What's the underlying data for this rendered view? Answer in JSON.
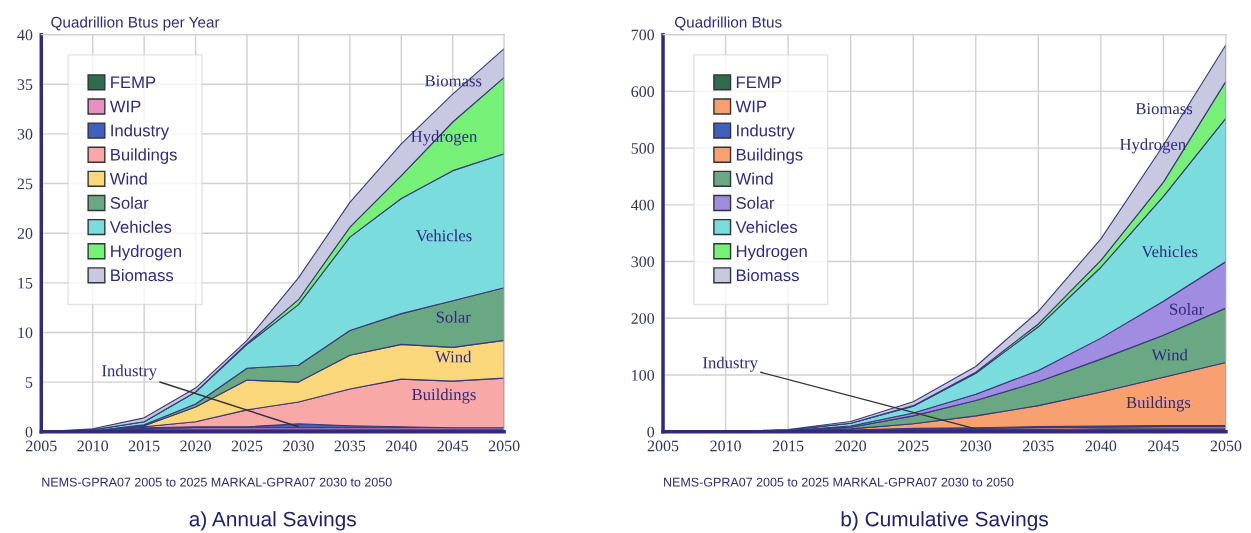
{
  "chart_data": [
    {
      "type": "area",
      "stacked": true,
      "title": "a) Annual Savings",
      "ylabel": "Quadrillion Btus per Year",
      "x": [
        2005,
        2010,
        2015,
        2020,
        2025,
        2030,
        2035,
        2040,
        2045,
        2050
      ],
      "xlim": [
        2005,
        2050
      ],
      "xticks": [
        2005,
        2010,
        2015,
        2020,
        2025,
        2030,
        2035,
        2040,
        2045,
        2050
      ],
      "ylim": [
        0,
        40
      ],
      "yticks": [
        0,
        5,
        10,
        15,
        20,
        25,
        30,
        35,
        40
      ],
      "grid": true,
      "legend": "top left",
      "series": [
        {
          "name": "FEMP",
          "color": "#2e6b4f",
          "values": [
            0,
            0.1,
            0.2,
            0.2,
            0.2,
            0.2,
            0.2,
            0.2,
            0.2,
            0.2
          ]
        },
        {
          "name": "WIP",
          "color": "#e890c0",
          "values": [
            0,
            0,
            0.1,
            0.2,
            0.2,
            0.2,
            0.2,
            0.2,
            0.2,
            0.2
          ]
        },
        {
          "name": "Industry",
          "color": "#4060c0",
          "values": [
            0,
            0,
            0.1,
            0.1,
            0.1,
            0.4,
            0.2,
            0.1,
            0,
            0
          ]
        },
        {
          "name": "Buildings",
          "color": "#f9a8a8",
          "values": [
            0,
            0,
            0.1,
            0.5,
            1.7,
            2.2,
            3.7,
            4.8,
            4.7,
            5.0
          ]
        },
        {
          "name": "Wind",
          "color": "#fad77a",
          "values": [
            0,
            0,
            0.1,
            1.5,
            3.0,
            2.0,
            3.4,
            3.5,
            3.4,
            3.8
          ]
        },
        {
          "name": "Solar",
          "color": "#6aa884",
          "values": [
            0,
            0,
            0.1,
            0.3,
            1.2,
            1.7,
            2.5,
            3.1,
            4.7,
            5.3
          ]
        },
        {
          "name": "Vehicles",
          "color": "#7adcdc",
          "values": [
            0,
            0.1,
            0.3,
            1.2,
            2.4,
            6.1,
            9.4,
            11.6,
            13.1,
            13.5
          ]
        },
        {
          "name": "Hydrogen",
          "color": "#77f077",
          "values": [
            0,
            0,
            0,
            0,
            0.1,
            0.5,
            1.0,
            2.3,
            4.9,
            7.7
          ]
        },
        {
          "name": "Biomass",
          "color": "#c8c8e0",
          "values": [
            0,
            0.1,
            0.4,
            0.4,
            0.3,
            2.2,
            2.5,
            3.2,
            2.8,
            2.9
          ]
        }
      ],
      "annotations": [
        "Biomass",
        "Hydrogen",
        "Vehicles",
        "Solar",
        "Wind",
        "Buildings",
        {
          "text": "Industry",
          "x": 2030,
          "y": 0.5
        },
        "NEMS-GPRA07 2005 to 2025 MARKAL-GPRA07 2030 to 2050"
      ]
    },
    {
      "type": "area",
      "stacked": true,
      "title": "b) Cumulative Savings",
      "ylabel": "Quadrillion Btus",
      "x": [
        2005,
        2010,
        2015,
        2020,
        2025,
        2030,
        2035,
        2040,
        2045,
        2050
      ],
      "xlim": [
        2005,
        2050
      ],
      "xticks": [
        2005,
        2010,
        2015,
        2020,
        2025,
        2030,
        2035,
        2040,
        2045,
        2050
      ],
      "ylim": [
        0,
        700
      ],
      "yticks": [
        0,
        100,
        200,
        300,
        400,
        500,
        600,
        700
      ],
      "grid": true,
      "legend": "top left",
      "series": [
        {
          "name": "FEMP",
          "color": "#2e6b4f",
          "values": [
            0,
            0,
            1,
            2,
            3,
            4,
            4,
            5,
            5,
            5
          ]
        },
        {
          "name": "WIP",
          "color": "#f6a070",
          "values": [
            0,
            0,
            0,
            1,
            2,
            2,
            3,
            3,
            4,
            4
          ]
        },
        {
          "name": "Industry",
          "color": "#4060c0",
          "values": [
            0,
            0,
            0,
            0,
            1,
            1,
            2,
            2,
            2,
            2
          ]
        },
        {
          "name": "Buildings",
          "color": "#f9a070",
          "values": [
            0,
            0,
            0,
            2,
            8,
            21,
            37,
            60,
            85,
            111
          ]
        },
        {
          "name": "Wind",
          "color": "#6aa884",
          "values": [
            0,
            0,
            1,
            3,
            14,
            27,
            42,
            58,
            74,
            96
          ]
        },
        {
          "name": "Solar",
          "color": "#a08ce0",
          "values": [
            0,
            0,
            0,
            2,
            5,
            11,
            20,
            37,
            60,
            82
          ]
        },
        {
          "name": "Vehicles",
          "color": "#7adcdc",
          "values": [
            0,
            0,
            1,
            5,
            12,
            37,
            77,
            125,
            185,
            253
          ]
        },
        {
          "name": "Hydrogen",
          "color": "#77f077",
          "values": [
            0,
            0,
            0,
            0,
            1,
            2,
            5,
            12,
            25,
            65
          ]
        },
        {
          "name": "Biomass",
          "color": "#c8c8e0",
          "values": [
            0,
            0,
            1,
            3,
            7,
            10,
            22,
            38,
            65,
            64
          ]
        }
      ],
      "annotations": [
        "Biomass",
        "Hydrogen",
        "Vehicles",
        "Solar",
        "Wind",
        "Buildings",
        {
          "text": "Industry",
          "x": 2030,
          "y": 5
        },
        "NEMS-GPRA07 2005 to 2025 MARKAL-GPRA07 2030 to 2050"
      ]
    }
  ]
}
